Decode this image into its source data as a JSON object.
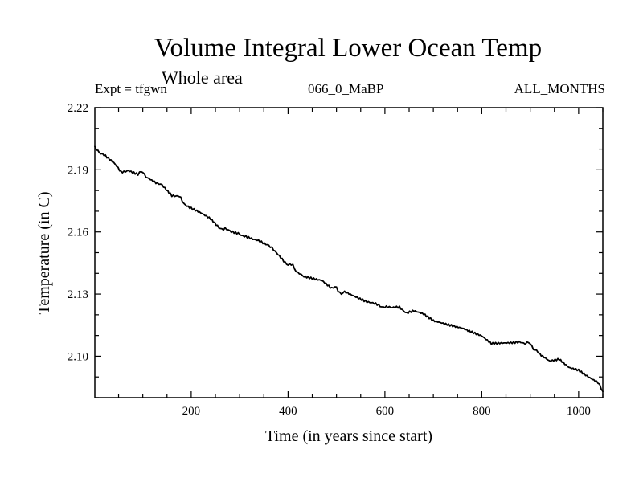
{
  "chart_data": {
    "type": "line",
    "title": "Volume Integral Lower Ocean Temp",
    "subtitle": "Whole area",
    "experiment": "Expt = tfgwn",
    "run_label": "066_0_MaBP",
    "months_label": "ALL_MONTHS",
    "xlabel": "Time (in years since start)",
    "ylabel": "Temperature (in C)",
    "xlim": [
      1,
      1050
    ],
    "ylim": [
      2.08,
      2.22
    ],
    "xticks": [
      200,
      400,
      600,
      800,
      1000
    ],
    "yticks": [
      2.1,
      2.13,
      2.16,
      2.19,
      2.22
    ],
    "ytick_labels": [
      "2.10",
      "2.13",
      "2.16",
      "2.19",
      "2.22"
    ],
    "series": [
      {
        "name": "Volume integral lower ocean temperature",
        "color": "#000000",
        "x": [
          1,
          20,
          40,
          55,
          70,
          90,
          100,
          110,
          130,
          140,
          160,
          175,
          185,
          200,
          220,
          240,
          260,
          270,
          280,
          300,
          310,
          330,
          345,
          360,
          370,
          385,
          400,
          410,
          420,
          430,
          450,
          470,
          490,
          500,
          510,
          520,
          540,
          560,
          575,
          590,
          600,
          615,
          630,
          645,
          660,
          680,
          700,
          720,
          740,
          760,
          780,
          800,
          820,
          840,
          860,
          880,
          890,
          900,
          910,
          920,
          940,
          960,
          980,
          1000,
          1020,
          1040,
          1050
        ],
        "y": [
          2.2005,
          2.197,
          2.193,
          2.189,
          2.19,
          2.188,
          2.189,
          2.186,
          2.183,
          2.183,
          2.178,
          2.177,
          2.174,
          2.1715,
          2.169,
          2.166,
          2.161,
          2.162,
          2.16,
          2.159,
          2.158,
          2.156,
          2.155,
          2.154,
          2.151,
          2.148,
          2.144,
          2.144,
          2.14,
          2.139,
          2.138,
          2.137,
          2.133,
          2.133,
          2.13,
          2.131,
          2.129,
          2.127,
          2.1255,
          2.124,
          2.124,
          2.123,
          2.124,
          2.121,
          2.1215,
          2.12,
          2.117,
          2.116,
          2.115,
          2.114,
          2.112,
          2.11,
          2.106,
          2.106,
          2.106,
          2.1065,
          2.1065,
          2.106,
          2.103,
          2.101,
          2.098,
          2.099,
          2.095,
          2.0935,
          2.09,
          2.087,
          2.083
        ]
      }
    ]
  }
}
